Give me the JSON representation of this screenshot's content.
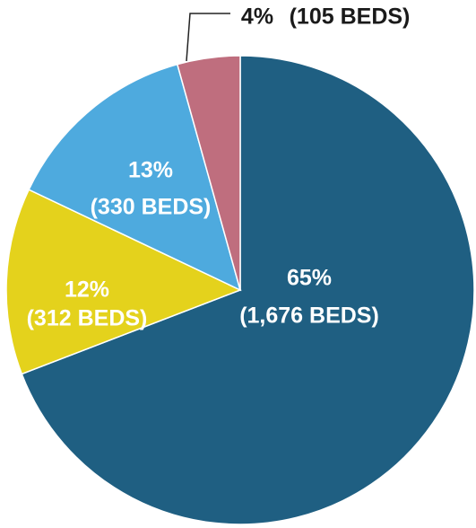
{
  "chart_data": {
    "type": "pie",
    "categories": [
      null,
      null,
      null,
      null
    ],
    "values": [
      1676,
      312,
      330,
      105
    ],
    "value_labels": [
      "(1,676 BEDS)",
      "(312 BEDS)",
      "(330 BEDS)",
      "(105 BEDS)"
    ],
    "percents": [
      65,
      12,
      13,
      4
    ],
    "percent_labels": [
      "65%",
      "12%",
      "13%",
      "4%"
    ],
    "colors": [
      "#1f5f82",
      "#e4d21c",
      "#4eaade",
      "#bf6e7e"
    ]
  }
}
